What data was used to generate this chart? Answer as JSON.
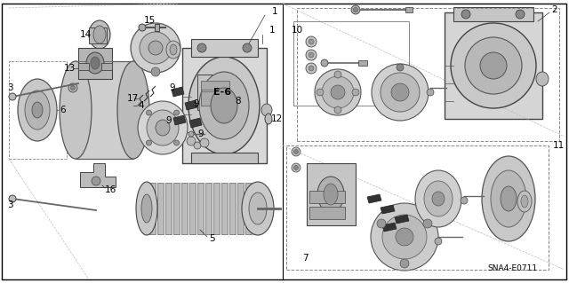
{
  "background_color": "#f0f0f0",
  "border_color": "#000000",
  "text_color": "#000000",
  "line_color": "#333333",
  "gray_light": "#cccccc",
  "gray_mid": "#999999",
  "gray_dark": "#555555",
  "gray_part": "#b0b0b0",
  "diagram_code": "SNA4-E0711",
  "label_font_size": 7.5,
  "code_font_size": 6.5,
  "e6_font_size": 8
}
